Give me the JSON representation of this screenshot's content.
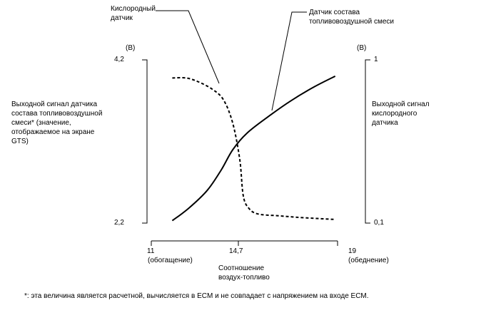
{
  "chart_data": {
    "type": "line",
    "xlabel": "Соотношение\nвоздух-топливо",
    "x_ticks": [
      {
        "value": 11,
        "label": "11",
        "sublabel": "(обогащение)"
      },
      {
        "value": 14.7,
        "label": "14,7",
        "sublabel": ""
      },
      {
        "value": 19,
        "label": "19",
        "sublabel": "(обеднение)"
      }
    ],
    "xlim": [
      11,
      19
    ],
    "y_left": {
      "unit": "(В)",
      "label": "Выходной сигнал датчика\nсостава топливовоздушной\nсмеси* (значение,\nотображаемое на экране\nGTS)",
      "range": [
        2.2,
        4.2
      ],
      "tick_labels": [
        "4,2",
        "2,2"
      ]
    },
    "y_right": {
      "unit": "(В)",
      "label": "Выходной сигнал\nкислородного\nдатчика",
      "range": [
        0.1,
        1.0
      ],
      "tick_labels": [
        "1",
        "0,1"
      ]
    },
    "series": [
      {
        "name": "Датчик состава\nтопливовоздушной смеси",
        "axis": "left",
        "style": "solid",
        "x": [
          11.9,
          12.6,
          13.4,
          14.0,
          14.5,
          15.1,
          16.0,
          17.0,
          18.0,
          18.9
        ],
        "y": [
          2.23,
          2.38,
          2.6,
          2.85,
          3.1,
          3.3,
          3.5,
          3.7,
          3.87,
          4.0
        ]
      },
      {
        "name": "Кислородный\nдатчик",
        "axis": "right",
        "style": "dashed",
        "x": [
          11.9,
          12.5,
          13.0,
          13.6,
          14.1,
          14.5,
          14.8,
          14.95,
          15.2,
          15.6,
          16.5,
          17.5,
          18.9
        ],
        "y": [
          0.9,
          0.9,
          0.88,
          0.84,
          0.78,
          0.65,
          0.45,
          0.25,
          0.18,
          0.15,
          0.14,
          0.13,
          0.12
        ]
      }
    ],
    "footnote": "*: эта величина является расчетной, вычисляется в ECM и не совпадает с напряжением на входе ECM."
  }
}
